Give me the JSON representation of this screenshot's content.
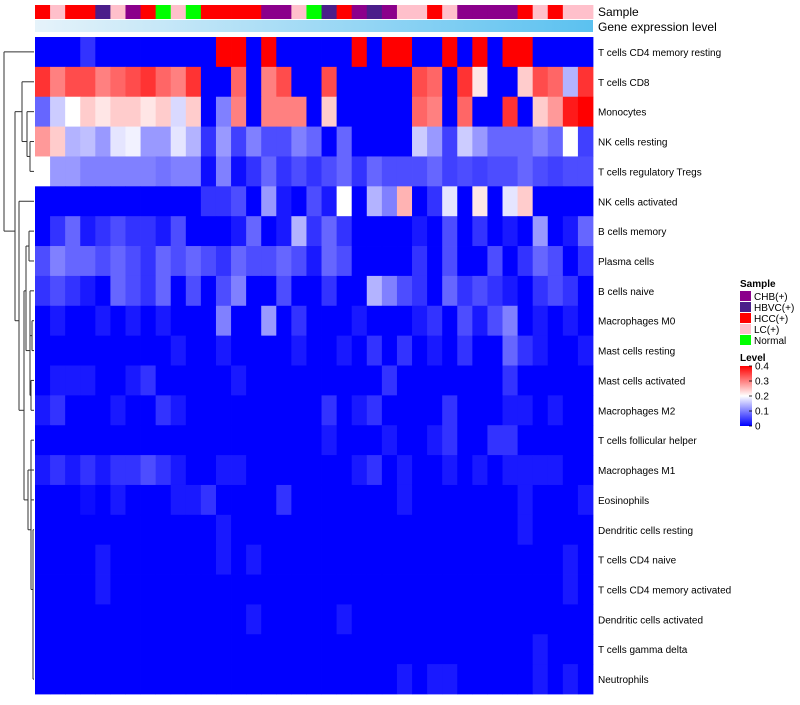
{
  "chart_data": {
    "type": "heatmap",
    "annotation_labels": [
      "Sample",
      "Gene expression level"
    ],
    "sample_groups": [
      "HCC(+)",
      "LC(+)",
      "HCC(+)",
      "HCC(+)",
      "HBVC(+)",
      "LC(+)",
      "CHB(+)",
      "HCC(+)",
      "Normal",
      "LC(+)",
      "Normal",
      "HCC(+)",
      "HCC(+)",
      "HCC(+)",
      "HCC(+)",
      "CHB(+)",
      "CHB(+)",
      "LC(+)",
      "Normal",
      "HBVC(+)",
      "HCC(+)",
      "CHB(+)",
      "HBVC(+)",
      "CHB(+)",
      "LC(+)",
      "LC(+)",
      "HCC(+)",
      "LC(+)",
      "CHB(+)",
      "CHB(+)",
      "CHB(+)",
      "CHB(+)",
      "HCC(+)",
      "LC(+)",
      "HCC(+)",
      "LC(+)",
      "LC(+)"
    ],
    "rows": [
      "T cells CD4 memory resting",
      "T cells CD8",
      "Monocytes",
      "NK cells resting",
      "T cells regulatory  Tregs",
      "NK cells activated",
      "B cells memory",
      "Plasma cells",
      "B cells naive",
      "Macrophages M0",
      "Mast cells resting",
      "Mast cells activated",
      "Macrophages M2",
      "T cells follicular helper",
      "Macrophages M1",
      "Eosinophils",
      "Dendritic cells resting",
      "T cells CD4 naive",
      "T cells CD4 memory activated",
      "Dendritic cells activated",
      "T cells gamma delta",
      "Neutrophils"
    ],
    "values": [
      [
        0.0,
        0.0,
        0.0,
        0.04,
        0.0,
        0.0,
        0.0,
        0.0,
        0.0,
        0.0,
        0.0,
        0.0,
        0.4,
        0.4,
        0.0,
        0.4,
        0.0,
        0.0,
        0.0,
        0.0,
        0.0,
        0.4,
        0.0,
        0.4,
        0.4,
        0.0,
        0.0,
        0.4,
        0.0,
        0.4,
        0.0,
        0.4,
        0.4,
        0.0,
        0.0,
        0.0,
        0.0
      ],
      [
        0.36,
        0.3,
        0.34,
        0.34,
        0.3,
        0.32,
        0.34,
        0.36,
        0.32,
        0.3,
        0.36,
        0.0,
        0.0,
        0.32,
        0.0,
        0.3,
        0.34,
        0.0,
        0.0,
        0.34,
        0.0,
        0.0,
        0.0,
        0.0,
        0.0,
        0.34,
        0.32,
        0.0,
        0.36,
        0.22,
        0.0,
        0.0,
        0.24,
        0.34,
        0.32,
        0.14,
        0.36
      ],
      [
        0.08,
        0.16,
        0.2,
        0.24,
        0.22,
        0.24,
        0.24,
        0.22,
        0.24,
        0.17,
        0.24,
        0.0,
        0.1,
        0.3,
        0.0,
        0.3,
        0.3,
        0.3,
        0.0,
        0.24,
        0.0,
        0.0,
        0.0,
        0.0,
        0.0,
        0.32,
        0.3,
        0.0,
        0.32,
        0.0,
        0.0,
        0.36,
        0.0,
        0.24,
        0.28,
        0.38,
        0.4
      ],
      [
        0.28,
        0.24,
        0.14,
        0.15,
        0.12,
        0.18,
        0.19,
        0.12,
        0.12,
        0.18,
        0.14,
        0.04,
        0.12,
        0.05,
        0.1,
        0.06,
        0.06,
        0.1,
        0.08,
        0.0,
        0.08,
        0.0,
        0.0,
        0.0,
        0.0,
        0.16,
        0.12,
        0.05,
        0.16,
        0.12,
        0.08,
        0.08,
        0.08,
        0.1,
        0.08,
        0.2,
        0.05
      ],
      [
        0.2,
        0.12,
        0.12,
        0.1,
        0.1,
        0.1,
        0.1,
        0.1,
        0.09,
        0.1,
        0.1,
        0.01,
        0.1,
        0.01,
        0.04,
        0.08,
        0.04,
        0.06,
        0.04,
        0.06,
        0.08,
        0.04,
        0.08,
        0.06,
        0.06,
        0.06,
        0.08,
        0.05,
        0.06,
        0.05,
        0.06,
        0.06,
        0.08,
        0.06,
        0.05,
        0.06,
        0.06
      ],
      [
        0.0,
        0.0,
        0.0,
        0.0,
        0.0,
        0.0,
        0.0,
        0.0,
        0.0,
        0.0,
        0.0,
        0.04,
        0.04,
        0.06,
        0.0,
        0.12,
        0.02,
        0.0,
        0.06,
        0.02,
        0.2,
        0.0,
        0.14,
        0.1,
        0.26,
        0.0,
        0.04,
        0.18,
        0.0,
        0.22,
        0.0,
        0.18,
        0.24,
        0.0,
        0.0,
        0.0,
        0.0
      ],
      [
        0.0,
        0.04,
        0.08,
        0.02,
        0.04,
        0.06,
        0.04,
        0.04,
        0.02,
        0.06,
        0.0,
        0.0,
        0.0,
        0.02,
        0.08,
        0.0,
        0.02,
        0.14,
        0.04,
        0.08,
        0.04,
        0.0,
        0.0,
        0.0,
        0.0,
        0.02,
        0.0,
        0.06,
        0.0,
        0.04,
        0.0,
        0.02,
        0.0,
        0.12,
        0.0,
        0.02,
        0.08
      ],
      [
        0.06,
        0.1,
        0.08,
        0.08,
        0.06,
        0.08,
        0.06,
        0.04,
        0.08,
        0.06,
        0.08,
        0.06,
        0.04,
        0.08,
        0.06,
        0.06,
        0.08,
        0.06,
        0.02,
        0.08,
        0.06,
        0.0,
        0.0,
        0.0,
        0.0,
        0.04,
        0.0,
        0.06,
        0.0,
        0.0,
        0.06,
        0.0,
        0.04,
        0.08,
        0.06,
        0.0,
        0.04
      ],
      [
        0.04,
        0.06,
        0.04,
        0.02,
        0.0,
        0.08,
        0.06,
        0.04,
        0.08,
        0.0,
        0.06,
        0.0,
        0.06,
        0.1,
        0.0,
        0.0,
        0.06,
        0.0,
        0.0,
        0.04,
        0.0,
        0.0,
        0.14,
        0.1,
        0.06,
        0.04,
        0.0,
        0.08,
        0.04,
        0.06,
        0.04,
        0.02,
        0.0,
        0.04,
        0.06,
        0.04,
        0.0
      ],
      [
        0.0,
        0.02,
        0.0,
        0.0,
        0.02,
        0.0,
        0.02,
        0.0,
        0.02,
        0.0,
        0.0,
        0.0,
        0.1,
        0.0,
        0.0,
        0.12,
        0.0,
        0.04,
        0.0,
        0.0,
        0.0,
        0.02,
        0.0,
        0.0,
        0.0,
        0.02,
        0.04,
        0.0,
        0.06,
        0.02,
        0.06,
        0.1,
        0.0,
        0.02,
        0.0,
        0.02,
        0.0
      ],
      [
        0.0,
        0.0,
        0.0,
        0.0,
        0.0,
        0.0,
        0.0,
        0.0,
        0.0,
        0.02,
        0.0,
        0.0,
        0.02,
        0.0,
        0.0,
        0.0,
        0.0,
        0.02,
        0.0,
        0.0,
        0.02,
        0.0,
        0.04,
        0.0,
        0.04,
        0.0,
        0.02,
        0.0,
        0.04,
        0.0,
        0.0,
        0.08,
        0.04,
        0.02,
        0.0,
        0.0,
        0.02
      ],
      [
        0.0,
        0.02,
        0.02,
        0.02,
        0.0,
        0.0,
        0.02,
        0.04,
        0.0,
        0.0,
        0.0,
        0.0,
        0.0,
        0.02,
        0.0,
        0.0,
        0.0,
        0.0,
        0.0,
        0.0,
        0.0,
        0.0,
        0.0,
        0.04,
        0.0,
        0.0,
        0.0,
        0.0,
        0.0,
        0.0,
        0.0,
        0.04,
        0.0,
        0.0,
        0.0,
        0.0,
        0.0
      ],
      [
        0.02,
        0.04,
        0.0,
        0.0,
        0.0,
        0.02,
        0.0,
        0.0,
        0.04,
        0.02,
        0.0,
        0.0,
        0.0,
        0.0,
        0.0,
        0.0,
        0.0,
        0.0,
        0.0,
        0.04,
        0.0,
        0.02,
        0.04,
        0.0,
        0.0,
        0.0,
        0.0,
        0.04,
        0.0,
        0.0,
        0.0,
        0.02,
        0.02,
        0.0,
        0.02,
        0.0,
        0.0
      ],
      [
        0.0,
        0.0,
        0.0,
        0.0,
        0.0,
        0.0,
        0.0,
        0.0,
        0.0,
        0.0,
        0.0,
        0.0,
        0.0,
        0.0,
        0.0,
        0.0,
        0.0,
        0.0,
        0.0,
        0.02,
        0.0,
        0.0,
        0.0,
        0.02,
        0.0,
        0.0,
        0.02,
        0.04,
        0.0,
        0.0,
        0.04,
        0.04,
        0.0,
        0.0,
        0.0,
        0.0,
        0.0
      ],
      [
        0.02,
        0.04,
        0.02,
        0.04,
        0.02,
        0.04,
        0.04,
        0.06,
        0.04,
        0.02,
        0.0,
        0.0,
        0.02,
        0.02,
        0.0,
        0.0,
        0.0,
        0.0,
        0.0,
        0.0,
        0.0,
        0.02,
        0.04,
        0.0,
        0.02,
        0.0,
        0.0,
        0.02,
        0.0,
        0.02,
        0.0,
        0.02,
        0.02,
        0.02,
        0.02,
        0.0,
        0.0
      ],
      [
        0.0,
        0.0,
        0.0,
        0.01,
        0.0,
        0.02,
        0.0,
        0.0,
        0.0,
        0.02,
        0.02,
        0.04,
        0.0,
        0.0,
        0.0,
        0.0,
        0.04,
        0.0,
        0.0,
        0.0,
        0.0,
        0.0,
        0.0,
        0.0,
        0.02,
        0.0,
        0.0,
        0.0,
        0.0,
        0.0,
        0.0,
        0.0,
        0.02,
        0.0,
        0.0,
        0.0,
        0.02
      ],
      [
        0.0,
        0.0,
        0.0,
        0.0,
        0.0,
        0.0,
        0.0,
        0.0,
        0.0,
        0.0,
        0.0,
        0.0,
        0.02,
        0.0,
        0.0,
        0.0,
        0.0,
        0.0,
        0.0,
        0.0,
        0.0,
        0.0,
        0.0,
        0.0,
        0.0,
        0.0,
        0.0,
        0.0,
        0.0,
        0.0,
        0.0,
        0.0,
        0.02,
        0.0,
        0.0,
        0.0,
        0.0
      ],
      [
        0.0,
        0.0,
        0.0,
        0.0,
        0.02,
        0.0,
        0.0,
        0.0,
        0.0,
        0.0,
        0.0,
        0.0,
        0.02,
        0.0,
        0.02,
        0.0,
        0.0,
        0.0,
        0.0,
        0.0,
        0.0,
        0.0,
        0.0,
        0.0,
        0.0,
        0.0,
        0.0,
        0.0,
        0.0,
        0.0,
        0.0,
        0.0,
        0.0,
        0.0,
        0.0,
        0.02,
        0.0
      ],
      [
        0.0,
        0.0,
        0.0,
        0.0,
        0.02,
        0.0,
        0.0,
        0.0,
        0.0,
        0.0,
        0.0,
        0.0,
        0.0,
        0.0,
        0.0,
        0.0,
        0.0,
        0.0,
        0.0,
        0.0,
        0.0,
        0.0,
        0.0,
        0.0,
        0.0,
        0.0,
        0.0,
        0.0,
        0.0,
        0.0,
        0.0,
        0.0,
        0.0,
        0.0,
        0.0,
        0.02,
        0.0
      ],
      [
        0.0,
        0.0,
        0.0,
        0.0,
        0.0,
        0.0,
        0.0,
        0.0,
        0.0,
        0.0,
        0.0,
        0.0,
        0.0,
        0.0,
        0.02,
        0.0,
        0.0,
        0.0,
        0.0,
        0.0,
        0.02,
        0.0,
        0.0,
        0.0,
        0.0,
        0.0,
        0.0,
        0.0,
        0.0,
        0.0,
        0.0,
        0.0,
        0.0,
        0.0,
        0.0,
        0.0,
        0.0
      ],
      [
        0.0,
        0.0,
        0.0,
        0.0,
        0.0,
        0.0,
        0.0,
        0.0,
        0.0,
        0.0,
        0.0,
        0.0,
        0.0,
        0.0,
        0.0,
        0.0,
        0.0,
        0.0,
        0.0,
        0.0,
        0.0,
        0.0,
        0.0,
        0.0,
        0.0,
        0.0,
        0.0,
        0.0,
        0.0,
        0.0,
        0.0,
        0.0,
        0.0,
        0.02,
        0.0,
        0.0,
        0.0
      ],
      [
        0.0,
        0.0,
        0.0,
        0.0,
        0.0,
        0.0,
        0.0,
        0.0,
        0.0,
        0.0,
        0.0,
        0.0,
        0.0,
        0.0,
        0.0,
        0.0,
        0.0,
        0.0,
        0.0,
        0.0,
        0.0,
        0.0,
        0.0,
        0.0,
        0.02,
        0.0,
        0.02,
        0.02,
        0.0,
        0.0,
        0.0,
        0.0,
        0.0,
        0.02,
        0.0,
        0.02,
        0.0
      ]
    ],
    "color_scale": {
      "min": 0,
      "max": 0.4,
      "low": "#0000ff",
      "mid": "#ffffff",
      "mid_value": 0.2,
      "high": "#ff0000"
    },
    "legend": {
      "sample_title": "Sample",
      "sample_items": [
        {
          "label": "CHB(+)",
          "color": "#8b008b"
        },
        {
          "label": "HBVC(+)",
          "color": "#4b1e8a"
        },
        {
          "label": "HCC(+)",
          "color": "#ff0000"
        },
        {
          "label": "LC(+)",
          "color": "#ffc0cb"
        },
        {
          "label": "Normal",
          "color": "#00ff00"
        }
      ],
      "level_title": "Level",
      "level_ticks": [
        "0.4",
        "0.3",
        "0.2",
        "0.1",
        "0"
      ]
    },
    "expression_bar_colors": [
      "#e6f3fa",
      "#5bc1f0"
    ]
  }
}
